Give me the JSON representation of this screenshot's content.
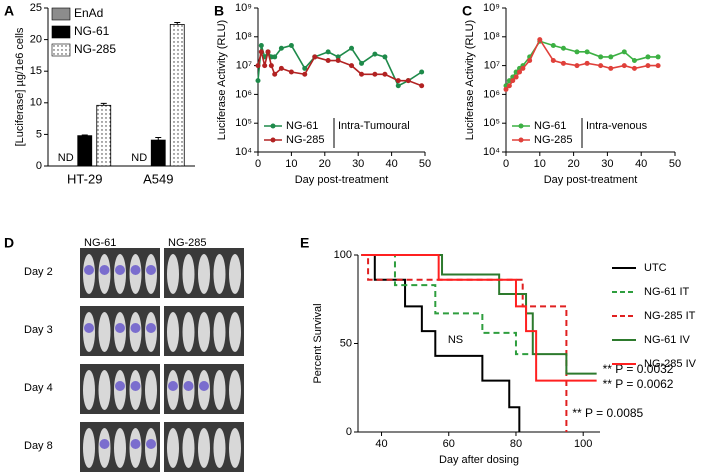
{
  "chart_data": [
    {
      "panel": "A",
      "type": "bar",
      "y_label": "[Luciferase] µg/1e6 cells",
      "categories": [
        "HT-29",
        "A549"
      ],
      "ylim": [
        0,
        25
      ],
      "yticks": [
        0,
        5,
        10,
        15,
        20,
        25
      ],
      "legend": "upper left",
      "series": [
        {
          "name": "EnAd",
          "color": "#8c8c8c",
          "values": [
            null,
            null
          ],
          "value_labels": [
            "ND",
            "ND"
          ]
        },
        {
          "name": "NG-61",
          "color": "#000000",
          "values": [
            4.8,
            4.1
          ],
          "errors": [
            0.1,
            0.4
          ]
        },
        {
          "name": "NG-285",
          "color": "#ffffff",
          "pattern": "dots",
          "values": [
            9.6,
            22.4
          ],
          "errors": [
            0.3,
            0.3
          ]
        }
      ]
    },
    {
      "panel": "B",
      "type": "line",
      "log_y": true,
      "x_label": "Day post-treatment",
      "y_label": "Luciferase Activity (RLU)",
      "xlim": [
        0,
        50
      ],
      "xticks": [
        0,
        10,
        20,
        30,
        40,
        50
      ],
      "ylim": [
        10000,
        1000000000
      ],
      "yticks": [
        {
          "value": 10000,
          "label": "10⁴"
        },
        {
          "value": 100000,
          "label": "10⁵"
        },
        {
          "value": 1000000,
          "label": "10⁶"
        },
        {
          "value": 10000000,
          "label": "10⁷"
        },
        {
          "value": 100000000,
          "label": "10⁸"
        },
        {
          "value": 1000000000,
          "label": "10⁹"
        }
      ],
      "legend": "lower left",
      "legend_note": "Intra-Tumoural",
      "x": [
        0,
        1,
        2,
        3,
        4,
        5,
        7,
        10,
        14,
        17,
        21,
        24,
        28,
        31,
        35,
        38,
        42,
        45,
        49
      ],
      "series": [
        {
          "name": "NG-61",
          "color": "#1e8a4a",
          "values": [
            3000000,
            50000000,
            20000000,
            30000000,
            20000000,
            20000000,
            40000000,
            50000000,
            8000000,
            20000000,
            30000000,
            20000000,
            40000000,
            12000000,
            25000000,
            20000000,
            2000000,
            3000000,
            6000000
          ]
        },
        {
          "name": "NG-285",
          "color": "#b22222",
          "values": [
            10000000,
            30000000,
            10000000,
            30000000,
            10000000,
            5000000,
            8000000,
            6000000,
            5000000,
            20000000,
            15000000,
            15000000,
            10000000,
            5000000,
            5000000,
            5000000,
            3000000,
            3000000,
            2000000
          ]
        }
      ]
    },
    {
      "panel": "C",
      "type": "line",
      "log_y": true,
      "x_label": "Day post-treatment",
      "y_label": "Luciferase Activity (RLU)",
      "xlim": [
        0,
        50
      ],
      "xticks": [
        0,
        10,
        20,
        30,
        40,
        50
      ],
      "ylim": [
        10000,
        1000000000
      ],
      "yticks": [
        {
          "value": 10000,
          "label": "10⁴"
        },
        {
          "value": 100000,
          "label": "10⁵"
        },
        {
          "value": 1000000,
          "label": "10⁶"
        },
        {
          "value": 10000000,
          "label": "10⁷"
        },
        {
          "value": 100000000,
          "label": "10⁸"
        },
        {
          "value": 1000000000,
          "label": "10⁹"
        }
      ],
      "legend": "lower left",
      "legend_note": "Intra-venous",
      "x": [
        0,
        1,
        2,
        3,
        4,
        5,
        7,
        10,
        14,
        17,
        21,
        24,
        28,
        31,
        35,
        38,
        42,
        45
      ],
      "series": [
        {
          "name": "NG-61",
          "color": "#3cb043",
          "values": [
            2000000,
            3000000,
            4000000,
            6000000,
            8000000,
            10000000,
            20000000,
            70000000,
            50000000,
            40000000,
            30000000,
            30000000,
            20000000,
            20000000,
            30000000,
            15000000,
            20000000,
            20000000
          ]
        },
        {
          "name": "NG-285",
          "color": "#e0403a",
          "values": [
            1500000,
            2000000,
            3000000,
            4000000,
            6000000,
            8000000,
            15000000,
            80000000,
            15000000,
            12000000,
            10000000,
            12000000,
            10000000,
            8000000,
            10000000,
            8000000,
            10000000,
            10000000
          ]
        }
      ]
    },
    {
      "panel": "E",
      "type": "step",
      "x_label": "Day after dosing",
      "y_label": "Percent Survival",
      "xlim": [
        33,
        105
      ],
      "xticks": [
        40,
        60,
        80,
        100
      ],
      "ylim": [
        0,
        100
      ],
      "yticks": [
        0,
        50,
        100
      ],
      "legend": "right",
      "annotations": [
        "NS"
      ],
      "series": [
        {
          "name": "UTC",
          "color": "#000000",
          "dash": false,
          "x": [
            34,
            38,
            47,
            52,
            56,
            70,
            78,
            81
          ],
          "values": [
            100,
            86,
            71,
            57,
            43,
            29,
            14,
            0
          ]
        },
        {
          "name": "NG-61 IT",
          "color": "#2e9e3e",
          "dash": true,
          "x": [
            34,
            44,
            56,
            70,
            80,
            84
          ],
          "values": [
            100,
            83,
            67,
            56,
            44,
            44
          ]
        },
        {
          "name": "NG-285 IT",
          "color": "#e02020",
          "dash": true,
          "x": [
            34,
            36,
            82,
            95
          ],
          "values": [
            100,
            86,
            71,
            0
          ],
          "p_label": "** P = 0.0085"
        },
        {
          "name": "NG-61 IV",
          "color": "#2d7a2d",
          "dash": false,
          "x": [
            34,
            58,
            75,
            83,
            85,
            95,
            104
          ],
          "values": [
            100,
            89,
            78,
            67,
            44,
            33,
            33
          ],
          "p_label": "** P = 0.0032"
        },
        {
          "name": "NG-285 IV",
          "color": "#ff2020",
          "dash": false,
          "x": [
            34,
            57,
            80,
            83,
            86,
            104
          ],
          "values": [
            100,
            86,
            71,
            57,
            29,
            29
          ],
          "p_label": "** P = 0.0062"
        }
      ]
    }
  ],
  "image_panel": {
    "panel": "D",
    "columns": [
      "NG-61",
      "NG-285"
    ],
    "rows": [
      "Day 2",
      "Day 3",
      "Day 4",
      "Day 8"
    ]
  }
}
